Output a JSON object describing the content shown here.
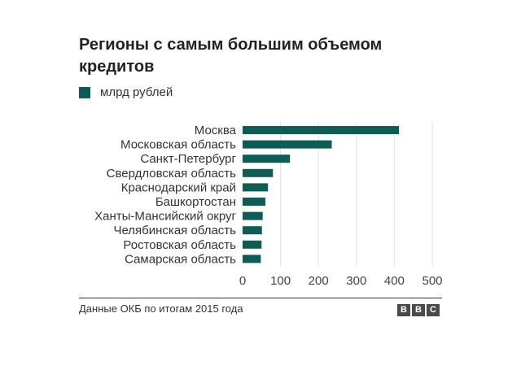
{
  "header": {
    "title": "Регионы с самым большим объемом кредитов"
  },
  "legend": {
    "label": "млрд рублей",
    "color": "#0d5c55"
  },
  "footer": {
    "source": "Данные ОКБ по итогам 2015 года",
    "logo_letters": [
      "B",
      "B",
      "C"
    ]
  },
  "chart_data": {
    "type": "bar",
    "orientation": "horizontal",
    "title": "Регионы с самым большим объемом кредитов",
    "categories": [
      "Москва",
      "Московская область",
      "Санкт-Петербург",
      "Свердловская область",
      "Краснодарский край",
      "Башкортостан",
      "Ханты-Мансийский округ",
      "Челябинская область",
      "Ростовская область",
      "Самарская область"
    ],
    "series": [
      {
        "name": "млрд рублей",
        "values": [
          412,
          235,
          125,
          80,
          67,
          60,
          53,
          51,
          50,
          48
        ]
      }
    ],
    "xlim": [
      0,
      500
    ],
    "xticks": [
      0,
      100,
      200,
      300,
      400,
      500
    ],
    "grid": "vertical",
    "legend_position": "top-left",
    "bar_color": "#0d5c55"
  }
}
